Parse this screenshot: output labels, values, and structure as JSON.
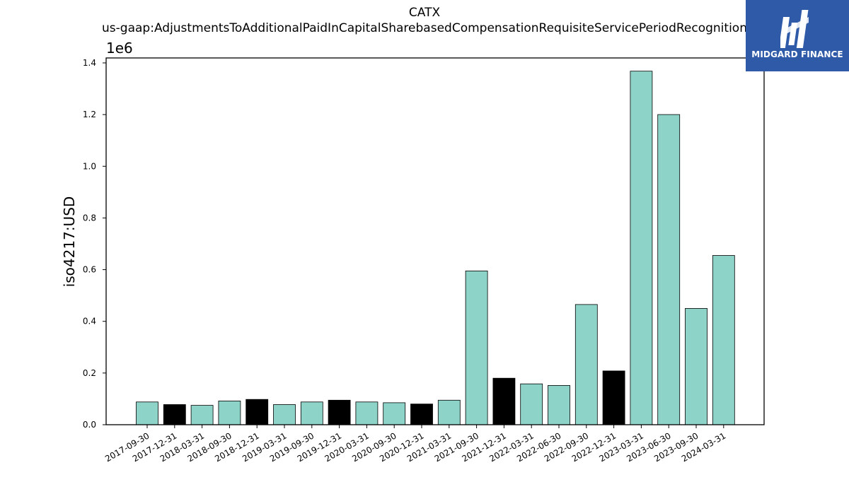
{
  "chart_data": {
    "type": "bar",
    "title": "CATX",
    "subtitle": "us-gaap:AdjustmentsToAdditionalPaidInCapitalSharebasedCompensationRequisiteServicePeriodRecognition",
    "xlabel": "",
    "ylabel": "iso4217:USD",
    "offset_label": "1e6",
    "ylim": [
      0,
      1400000
    ],
    "yticks": [
      "0.0",
      "0.2",
      "0.4",
      "0.6",
      "0.8",
      "1.0",
      "1.2",
      "1.4"
    ],
    "categories": [
      "2017-09-30",
      "2017-12-31",
      "2018-03-31",
      "2018-09-30",
      "2018-12-31",
      "2019-03-31",
      "2019-09-30",
      "2019-12-31",
      "2020-03-31",
      "2020-09-30",
      "2020-12-31",
      "2021-03-31",
      "2021-09-30",
      "2021-12-31",
      "2022-03-31",
      "2022-06-30",
      "2022-09-30",
      "2022-12-31",
      "2023-03-31",
      "2023-06-30",
      "2023-09-30",
      "2024-03-31"
    ],
    "values": [
      88000,
      78000,
      75000,
      92000,
      98000,
      78000,
      88000,
      95000,
      88000,
      85000,
      80000,
      95000,
      595000,
      180000,
      158000,
      152000,
      465000,
      208000,
      1368000,
      1200000,
      450000,
      655000
    ],
    "bar_colors": [
      "#8dd3c7",
      "#000000",
      "#8dd3c7",
      "#8dd3c7",
      "#000000",
      "#8dd3c7",
      "#8dd3c7",
      "#000000",
      "#8dd3c7",
      "#8dd3c7",
      "#000000",
      "#8dd3c7",
      "#8dd3c7",
      "#000000",
      "#8dd3c7",
      "#8dd3c7",
      "#8dd3c7",
      "#000000",
      "#8dd3c7",
      "#8dd3c7",
      "#8dd3c7",
      "#8dd3c7"
    ],
    "grid": false,
    "legend": "none"
  },
  "logo": {
    "text": "MIDGARD FINANCE",
    "color": "#2f5aa8"
  }
}
